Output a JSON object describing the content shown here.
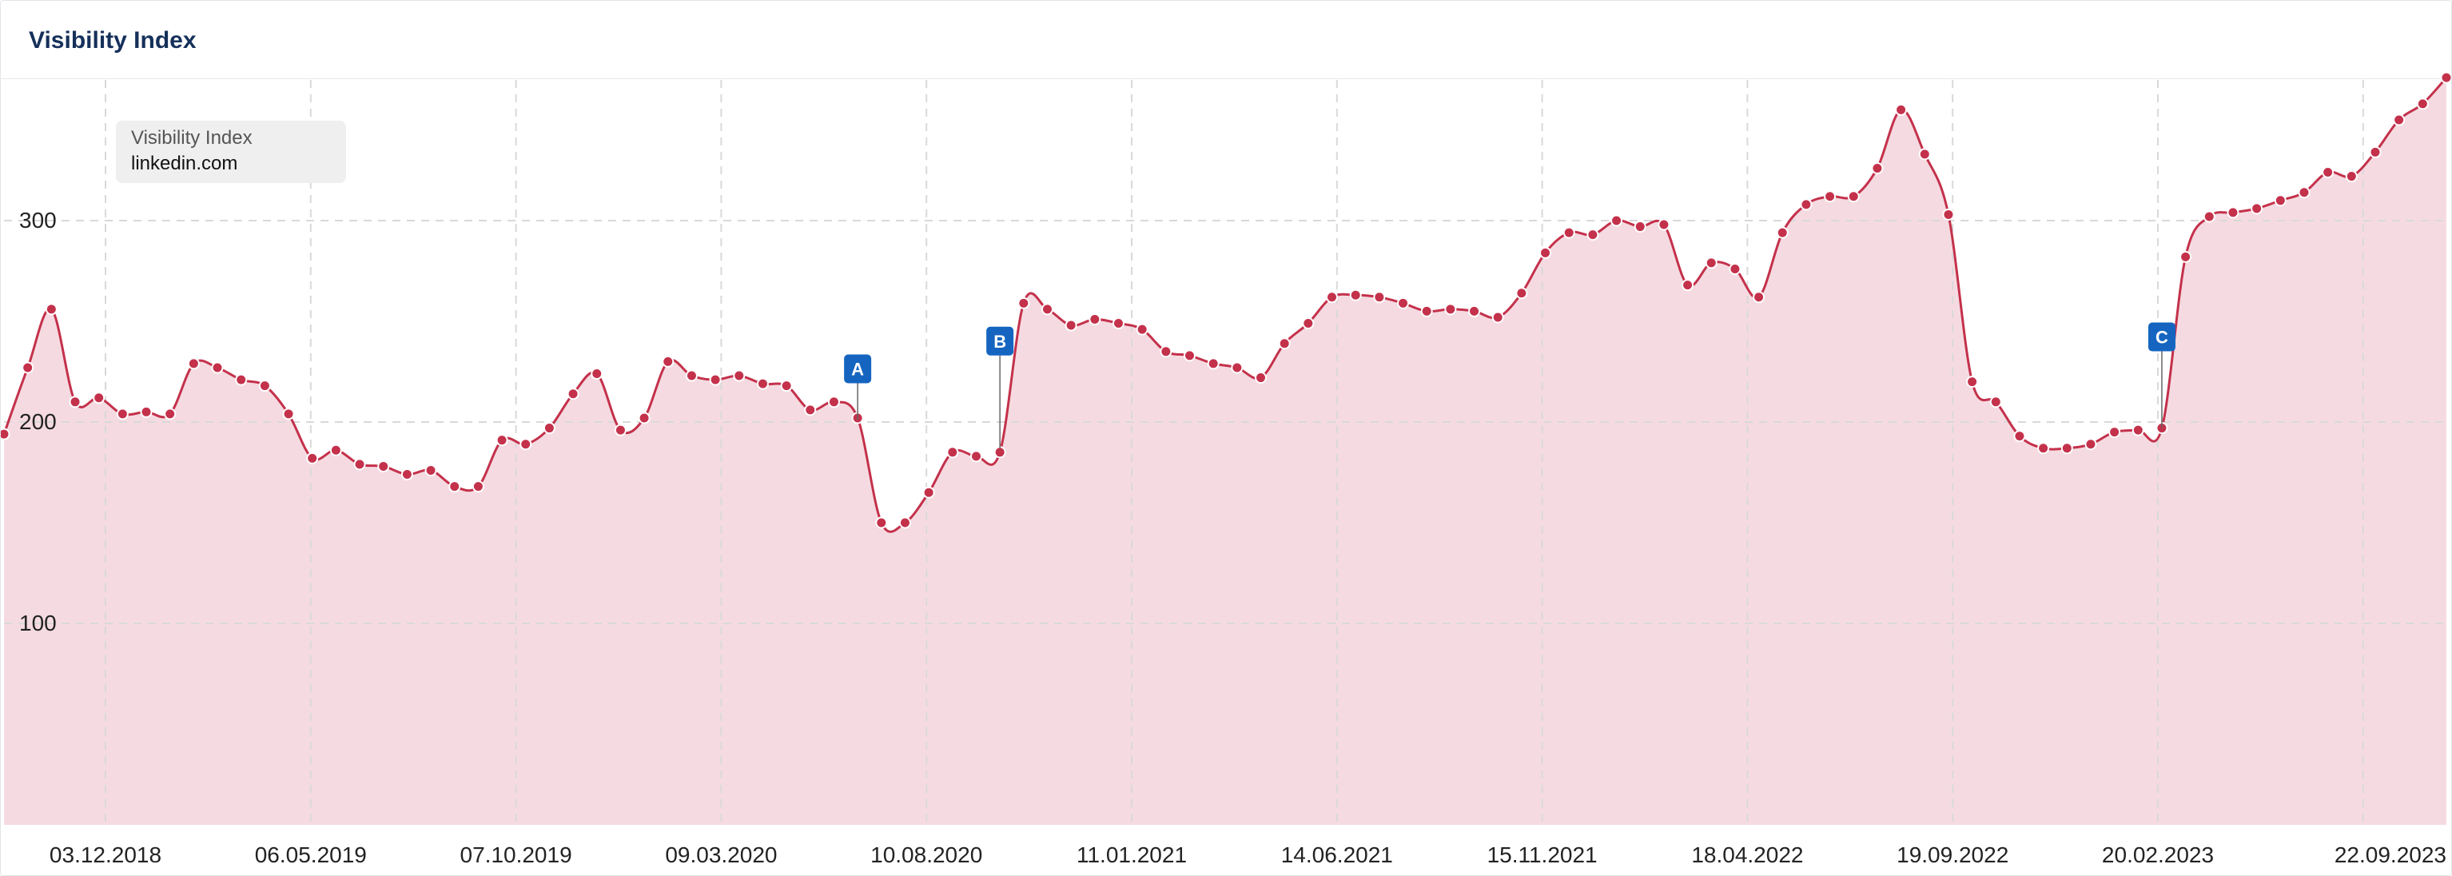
{
  "panel": {
    "title": "Visibility Index"
  },
  "legend": {
    "label": "Visibility Index",
    "domain": "linkedin.com"
  },
  "colors": {
    "line": "#c4314b",
    "area": "#f4d9df",
    "marker": "#1565c0",
    "grid": "#d9d9d9",
    "title": "#15305a"
  },
  "chart_data": {
    "type": "area",
    "ylim": [
      0,
      370
    ],
    "yticks": [
      100,
      200,
      300
    ],
    "grid": true,
    "xticks": [
      "03.12.2018",
      "06.05.2019",
      "07.10.2019",
      "09.03.2020",
      "10.08.2020",
      "11.01.2021",
      "14.06.2021",
      "15.11.2021",
      "18.04.2022",
      "19.09.2022",
      "20.02.2023",
      "22.09.2023"
    ],
    "series": [
      {
        "name": "linkedin.com",
        "values": [
          194,
          227,
          256,
          210,
          212,
          204,
          205,
          204,
          229,
          227,
          221,
          218,
          204,
          182,
          186,
          179,
          178,
          174,
          176,
          168,
          168,
          191,
          189,
          197,
          214,
          224,
          196,
          202,
          230,
          223,
          221,
          223,
          219,
          218,
          206,
          210,
          202,
          150,
          150,
          165,
          185,
          183,
          185,
          259,
          256,
          248,
          251,
          249,
          246,
          235,
          233,
          229,
          227,
          222,
          239,
          249,
          262,
          263,
          262,
          259,
          255,
          256,
          255,
          252,
          264,
          284,
          294,
          293,
          300,
          297,
          298,
          268,
          279,
          276,
          262,
          294,
          308,
          312,
          312,
          326,
          355,
          333,
          303,
          220,
          210,
          193,
          187,
          187,
          189,
          195,
          196,
          197,
          282,
          302,
          304,
          306,
          310,
          314,
          324,
          322,
          334,
          350,
          358,
          371
        ]
      }
    ],
    "annotations": [
      {
        "label": "A",
        "date": "10.08.2020",
        "value": 201
      },
      {
        "label": "B",
        "date": "end of Dec 2020",
        "value": 187
      },
      {
        "label": "C",
        "date": "20.02.2023",
        "value": 197
      }
    ]
  }
}
